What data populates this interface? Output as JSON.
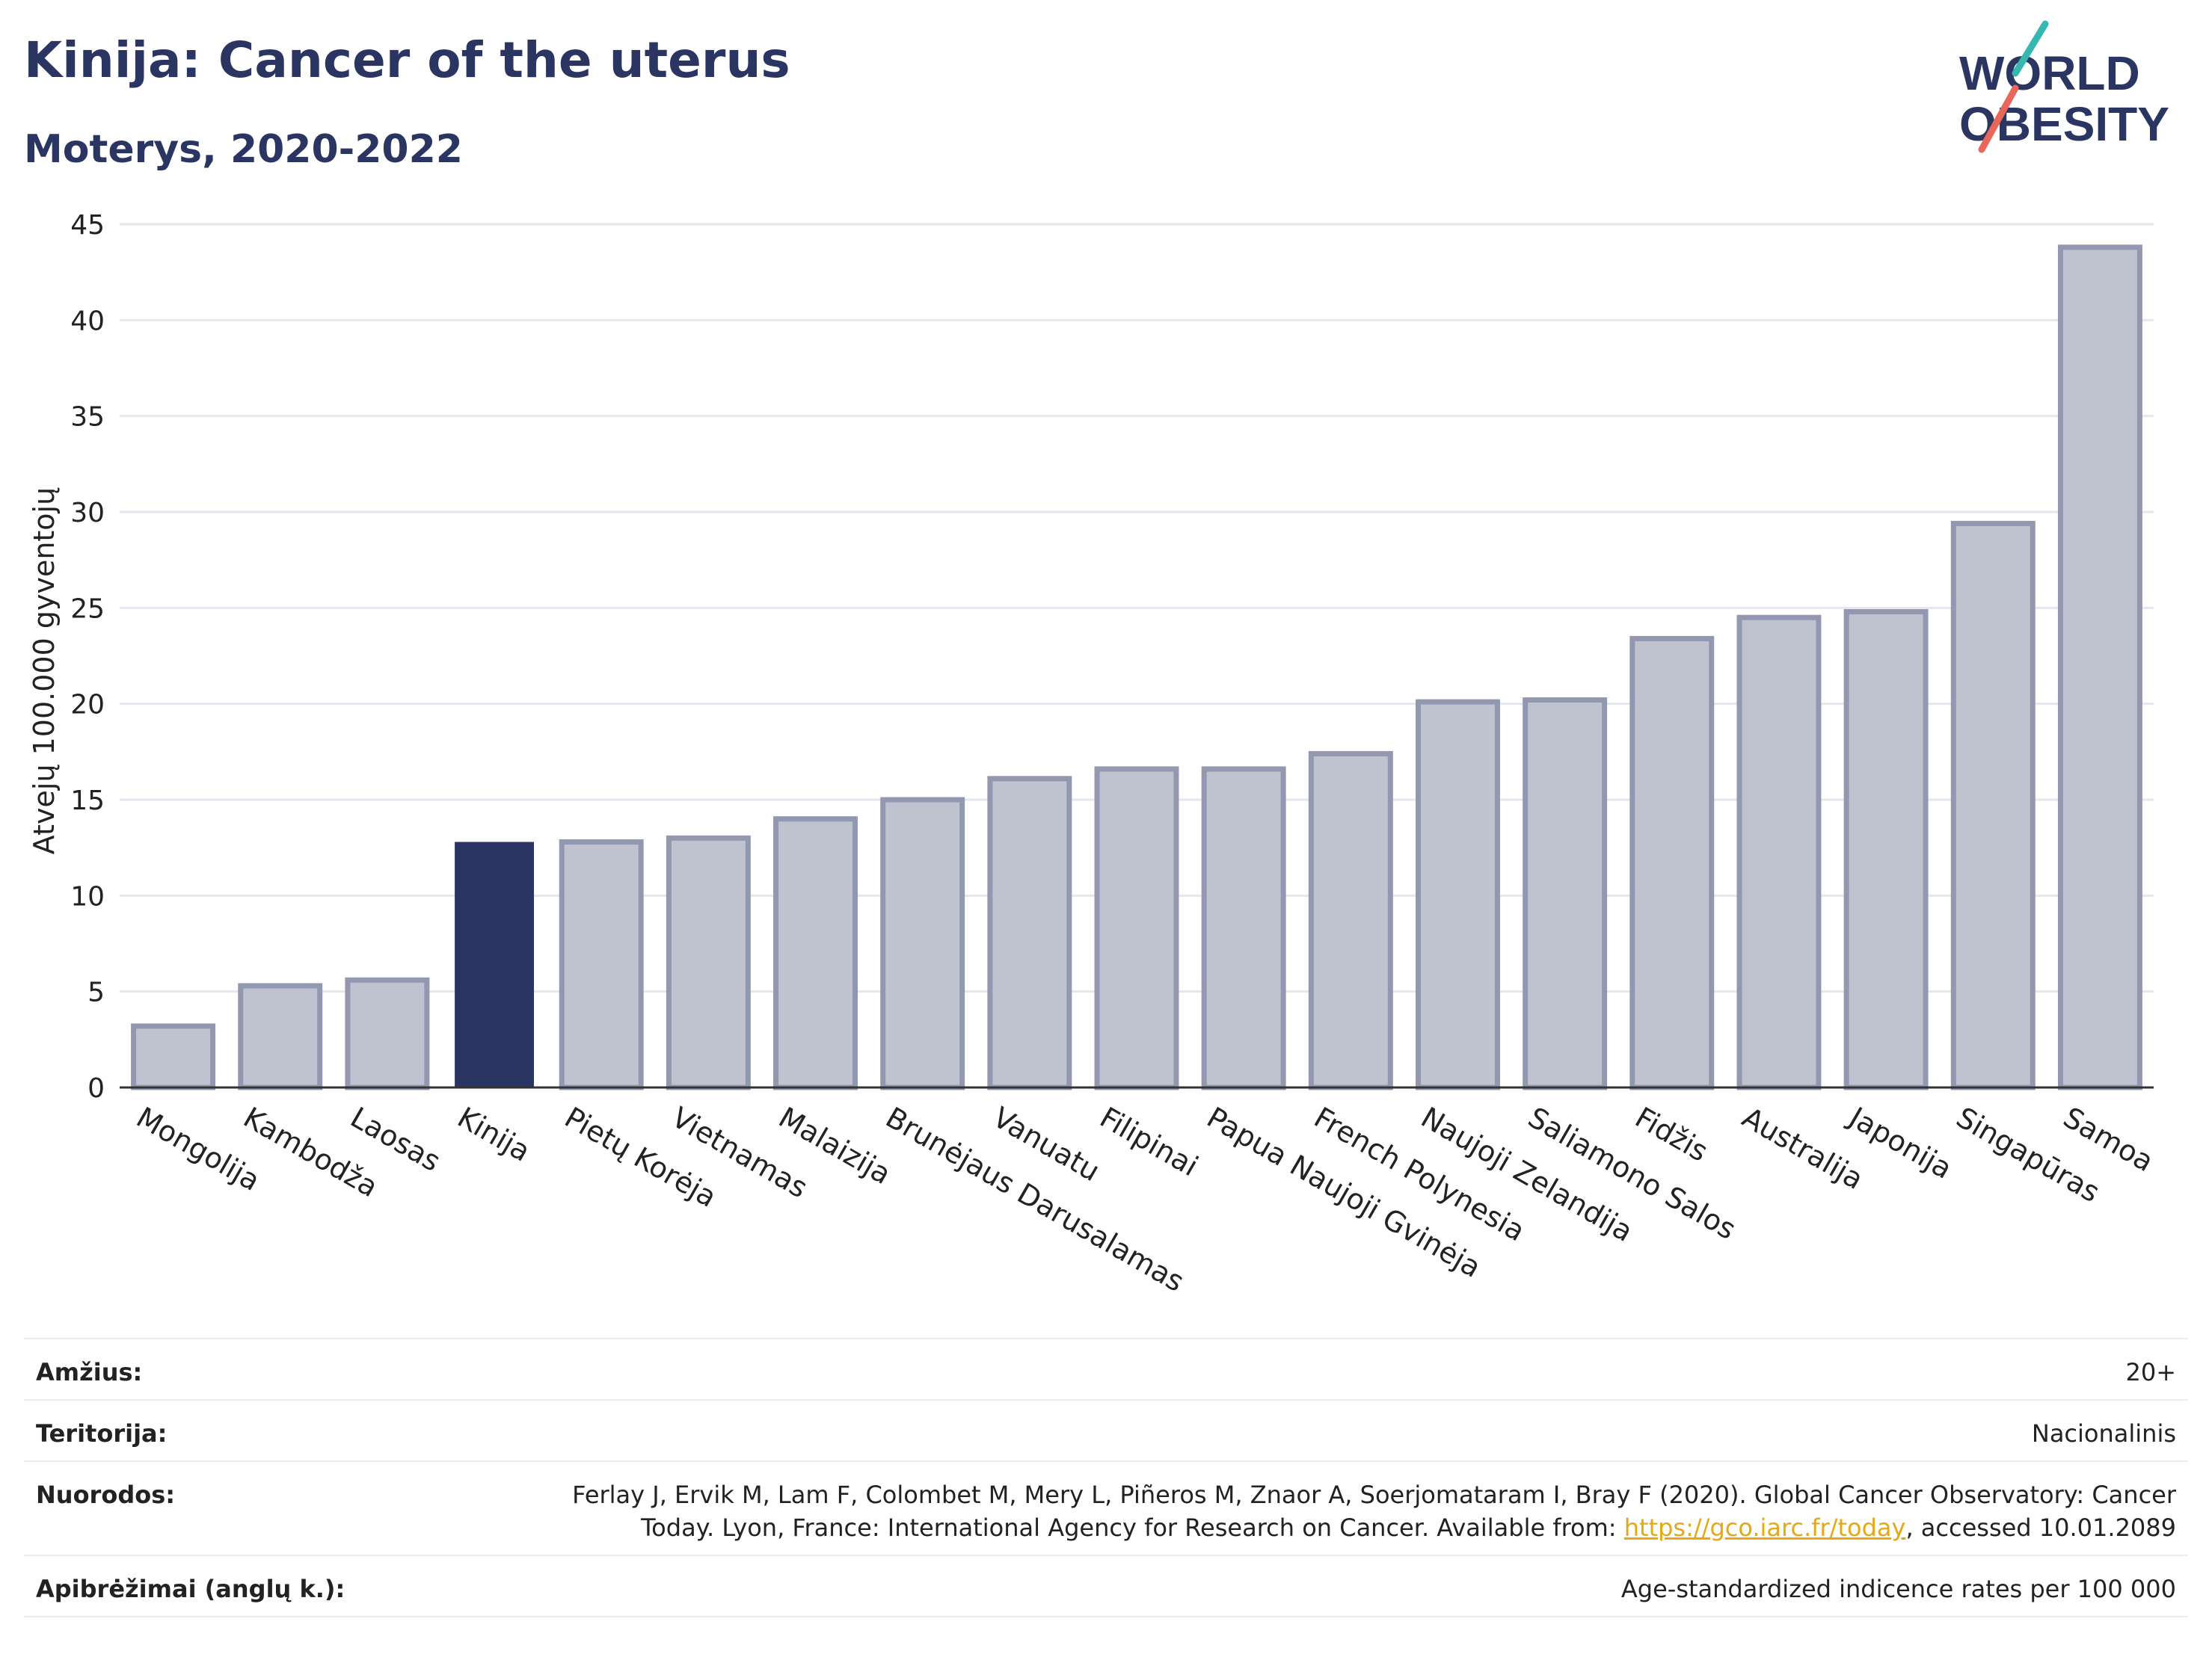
{
  "header": {
    "title": "Kinija: Cancer of the uterus",
    "subtitle": "Moterys, 2020-2022"
  },
  "logo": {
    "line1": "WORLD",
    "line2": "OBESITY"
  },
  "colors": {
    "highlight": "#2b3561",
    "bar_fill": "#bfc3d0",
    "bar_stroke": "#9198b0",
    "grid": "#e6e6ee",
    "title": "#2b3561",
    "logo_teal": "#36b8b0",
    "logo_red": "#e8665a",
    "link": "#e6a817"
  },
  "chart_data": {
    "type": "bar",
    "title": "Kinija: Cancer of the uterus",
    "subtitle": "Moterys, 2020-2022",
    "xlabel": "",
    "ylabel": "Atvejų 100.000 gyventojų",
    "ylim": [
      0,
      45
    ],
    "yticks": [
      0,
      5,
      10,
      15,
      20,
      25,
      30,
      35,
      40,
      45
    ],
    "grid": true,
    "highlight_category": "Kinija",
    "categories": [
      "Mongolija",
      "Kambodža",
      "Laosas",
      "Kinija",
      "Pietų Korėja",
      "Vietnamas",
      "Malaizija",
      "Brunėjaus Darusalamas",
      "Vanuatu",
      "Filipinai",
      "Papua Naujoji Gvinėja",
      "French Polynesia",
      "Naujoji Zelandija",
      "Saliamono Salos",
      "Fidžis",
      "Australija",
      "Japonija",
      "Singapūras",
      "Samoa"
    ],
    "values": [
      3.2,
      5.3,
      5.6,
      12.8,
      12.8,
      13.0,
      14.0,
      15.0,
      16.1,
      16.6,
      16.6,
      17.4,
      20.1,
      20.2,
      23.4,
      24.5,
      24.8,
      29.4,
      43.8
    ]
  },
  "meta": {
    "age_label": "Amžius:",
    "age_value": "20+",
    "territory_label": "Teritorija:",
    "territory_value": "Nacionalinis",
    "refs_label": "Nuorodos:",
    "refs_text_1": "Ferlay J, Ervik M, Lam F, Colombet M, Mery L, Piñeros M, Znaor A, Soerjomataram I, Bray F (2020). Global Cancer Observatory: Cancer",
    "refs_text_2": "Today. Lyon, France: International Agency for Research on Cancer. Available from: ",
    "refs_link": "https://gco.iarc.fr/today",
    "refs_text_3": ", accessed 10.01.2089",
    "def_label": "Apibrėžimai (anglų k.):",
    "def_value": "Age-standardized indicence rates per 100 000"
  }
}
